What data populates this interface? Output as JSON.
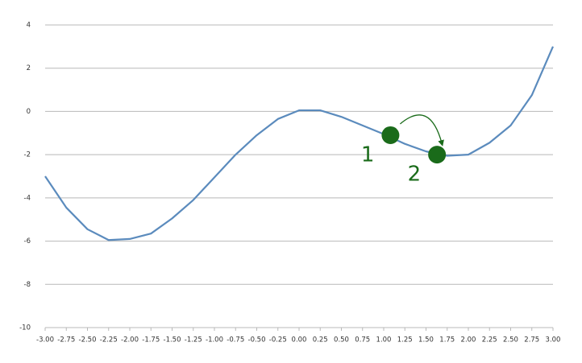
{
  "chart_data": {
    "type": "line",
    "x": [
      -3.0,
      -2.75,
      -2.5,
      -2.25,
      -2.0,
      -1.75,
      -1.5,
      -1.25,
      -1.0,
      -0.75,
      -0.5,
      -0.25,
      0.0,
      0.25,
      0.5,
      0.75,
      1.0,
      1.25,
      1.5,
      1.75,
      2.0,
      2.25,
      2.5,
      2.75,
      3.0
    ],
    "values": [
      -3.0,
      -4.45,
      -5.45,
      -5.95,
      -5.9,
      -5.65,
      -4.95,
      -4.1,
      -3.05,
      -2.0,
      -1.1,
      -0.35,
      0.05,
      0.05,
      -0.25,
      -0.65,
      -1.05,
      -1.5,
      -1.85,
      -2.05,
      -2.0,
      -1.45,
      -0.65,
      0.75,
      3.0
    ],
    "color": "#5b8bbd",
    "xlim": [
      -3,
      3
    ],
    "ylim": [
      -10,
      4
    ],
    "yticks": [
      -10,
      -8,
      -6,
      -4,
      -2,
      0,
      2,
      4
    ],
    "xticks": [
      {
        "value": -3,
        "label": "-3.00"
      },
      {
        "value": -2.75,
        "label": "-2.75"
      },
      {
        "value": -2.5,
        "label": "-2.50"
      },
      {
        "value": -2.25,
        "label": "-2.25"
      },
      {
        "value": -2,
        "label": "-2.00"
      },
      {
        "value": -1.75,
        "label": "-1.75"
      },
      {
        "value": -1.5,
        "label": "-1.50"
      },
      {
        "value": -1.25,
        "label": "-1.25"
      },
      {
        "value": -1,
        "label": "-1.00"
      },
      {
        "value": -0.75,
        "label": "-0.75"
      },
      {
        "value": -0.5,
        "label": "-0.50"
      },
      {
        "value": -0.25,
        "label": "-0.25"
      },
      {
        "value": 0,
        "label": "0.00"
      },
      {
        "value": 0.25,
        "label": "0.25"
      },
      {
        "value": 0.5,
        "label": "0.50"
      },
      {
        "value": 0.75,
        "label": "0.75"
      },
      {
        "value": 1,
        "label": "1.00"
      },
      {
        "value": 1.25,
        "label": "1.25"
      },
      {
        "value": 1.5,
        "label": "1.50"
      },
      {
        "value": 1.75,
        "label": "1.75"
      },
      {
        "value": 2,
        "label": "2.00"
      },
      {
        "value": 2.25,
        "label": "2.25"
      },
      {
        "value": 2.5,
        "label": "2.50"
      },
      {
        "value": 2.75,
        "label": "2.75"
      },
      {
        "value": 3,
        "label": "3.00"
      }
    ],
    "grid": true,
    "annotation_color": "#1a6b1a",
    "annotations": [
      {
        "label": "1",
        "x": 1.08,
        "y": -1.1
      },
      {
        "label": "2",
        "x": 1.63,
        "y": -2.0
      }
    ]
  }
}
